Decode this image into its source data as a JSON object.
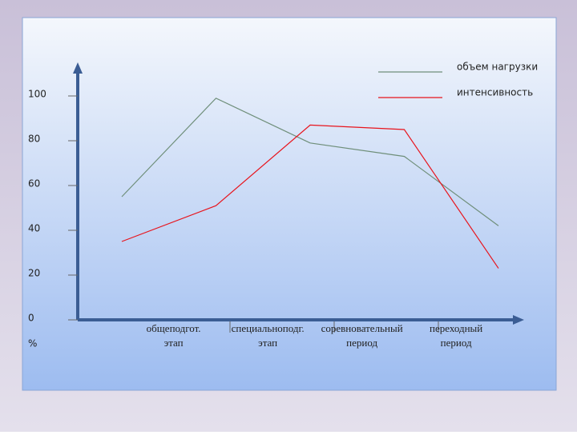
{
  "chart_data": {
    "type": "line",
    "categories": [
      [
        "общеподгот.",
        "этап"
      ],
      [
        "специальноподг.",
        "этап"
      ],
      [
        "соревновательный",
        "период"
      ],
      [
        "переходный",
        "период"
      ],
      null
    ],
    "series": [
      {
        "name": "объем нагрузки",
        "color": "#6f8f7a",
        "values": [
          55,
          99,
          79,
          73,
          42
        ]
      },
      {
        "name": "интенсивность",
        "color": "#e8141c",
        "values": [
          35,
          51,
          87,
          85,
          23
        ]
      }
    ],
    "ylim": [
      0,
      110
    ],
    "yticks": [
      0,
      20,
      40,
      60,
      80,
      100
    ],
    "y_unit": "%"
  }
}
